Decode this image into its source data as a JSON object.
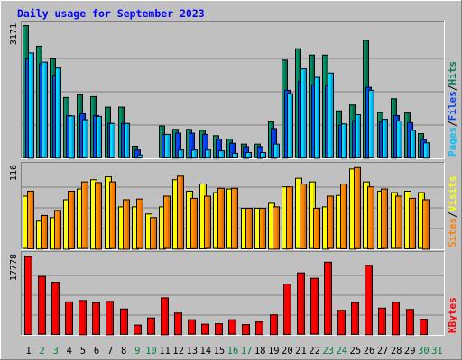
{
  "chart_data": {
    "type": "bar",
    "title": "Daily usage for September 2023",
    "categories": [
      "1",
      "2",
      "3",
      "4",
      "5",
      "6",
      "7",
      "8",
      "9",
      "10",
      "11",
      "12",
      "13",
      "14",
      "15",
      "16",
      "17",
      "18",
      "19",
      "20",
      "21",
      "22",
      "23",
      "24",
      "25",
      "26",
      "27",
      "28",
      "29",
      "30",
      "31"
    ],
    "weekend_days": [
      "2",
      "3",
      "9",
      "10",
      "16",
      "17",
      "23",
      "24",
      "30",
      "31"
    ],
    "panels": [
      {
        "id": "hits",
        "ylabel_parts": [
          "Pages",
          "Files",
          "Hits"
        ],
        "ylabel_separator": "/",
        "max_label": "3171",
        "ylim": [
          0,
          3171
        ],
        "series": [
          {
            "name": "Hits",
            "color": "#00805c",
            "values": [
              3171,
              2680,
              2380,
              1460,
              1520,
              1480,
              1230,
              1230,
              300,
              0,
              780,
              700,
              700,
              680,
              550,
              470,
              350,
              350,
              880,
              2350,
              2620,
              2470,
              2470,
              1140,
              1280,
              2820,
              1100,
              1430,
              1090,
              600,
              0
            ]
          },
          {
            "name": "Files",
            "color": "#0040ff",
            "values": [
              2380,
              2260,
              1990,
              1030,
              1070,
              1030,
              840,
              840,
              210,
              0,
              580,
              610,
              610,
              580,
              470,
              370,
              290,
              290,
              720,
              1630,
              1840,
              1760,
              1740,
              800,
              900,
              1700,
              880,
              1030,
              860,
              460,
              0
            ]
          },
          {
            "name": "Pages",
            "color": "#00c0ff",
            "values": [
              2520,
              2300,
              2160,
              1020,
              930,
              1010,
              840,
              840,
              90,
              0,
              580,
              210,
              210,
              210,
              190,
              130,
              150,
              150,
              350,
              1550,
              2140,
              1940,
              2040,
              830,
              1050,
              1630,
              940,
              900,
              680,
              380,
              0
            ]
          }
        ]
      },
      {
        "id": "visits",
        "ylabel_parts": [
          "Sites",
          "Visits"
        ],
        "ylabel_separator": "/",
        "max_label": "116",
        "ylim": [
          0,
          116
        ],
        "series": [
          {
            "name": "Visits",
            "color": "#ffff00",
            "values": [
              75,
              40,
              45,
              70,
              85,
              98,
              102,
              60,
              60,
              50,
              60,
              98,
              82,
              92,
              80,
              85,
              58,
              58,
              65,
              88,
              100,
              95,
              60,
              76,
              113,
              95,
              82,
              80,
              82,
              80,
              0
            ]
          },
          {
            "name": "Sites",
            "color": "#ff8000",
            "values": [
              82,
              48,
              55,
              82,
              95,
              94,
              95,
              70,
              71,
              45,
              75,
              103,
              72,
              75,
              86,
              86,
              58,
              58,
              60,
              88,
              92,
              58,
              75,
              92,
              115,
              88,
              85,
              75,
              72,
              70,
              0
            ]
          }
        ]
      },
      {
        "id": "kbytes",
        "ylabel_parts": [
          "KBytes"
        ],
        "ylabel_separator": "",
        "max_label": "17778",
        "ylim": [
          0,
          17778
        ],
        "series": [
          {
            "name": "KBytes",
            "color": "#ff0000",
            "values": [
              17778,
              13200,
              11900,
              7500,
              7800,
              7300,
              7600,
              5900,
              2300,
              3900,
              8400,
              5000,
              3500,
              2500,
              2600,
              3500,
              2400,
              3000,
              4600,
              11500,
              14000,
              12800,
              16400,
              5600,
              7300,
              15700,
              6100,
              7400,
              5800,
              3600,
              0
            ]
          }
        ]
      }
    ]
  },
  "colors": {
    "background": "#c0c0c0",
    "title": "#0000ff",
    "weekday_label": "#000000",
    "weekend_label": "#008040"
  }
}
